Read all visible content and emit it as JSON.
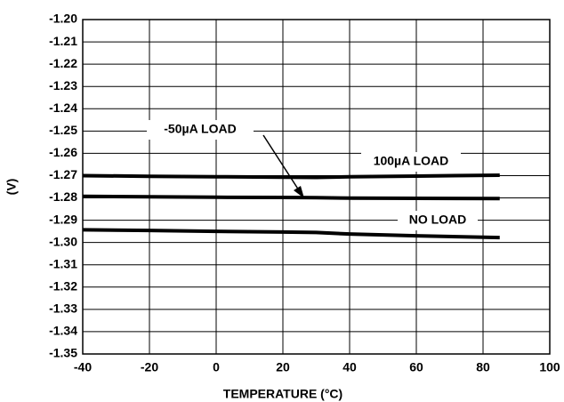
{
  "chart_data": {
    "type": "line",
    "xlabel": "TEMPERATURE (°C)",
    "ylabel": "(V)",
    "x": [
      -40,
      -20,
      0,
      20,
      30,
      40,
      60,
      85
    ],
    "series": [
      {
        "name": "100µA LOAD",
        "color": "#000000",
        "values": [
          -1.27,
          -1.2703,
          -1.2705,
          -1.2707,
          -1.2708,
          -1.2705,
          -1.2702,
          -1.2698
        ]
      },
      {
        "name": "-50µA LOAD",
        "color": "#000000",
        "values": [
          -1.2793,
          -1.2795,
          -1.2797,
          -1.2798,
          -1.2799,
          -1.2801,
          -1.2802,
          -1.2803
        ]
      },
      {
        "name": "NO LOAD",
        "color": "#000000",
        "values": [
          -1.2943,
          -1.2946,
          -1.295,
          -1.2953,
          -1.2955,
          -1.2962,
          -1.297,
          -1.2978
        ]
      }
    ],
    "xlim": [
      -40,
      100
    ],
    "xticks": [
      -40,
      -20,
      0,
      20,
      40,
      60,
      80,
      100
    ],
    "ylim": [
      -1.35,
      -1.2
    ],
    "yticks": [
      {
        "value": -1.2,
        "label": "-1.20"
      },
      -1.21,
      -1.22,
      -1.23,
      -1.24,
      -1.25,
      -1.26,
      -1.27,
      -1.28,
      -1.29,
      {
        "value": -1.3,
        "label": "-1.30"
      },
      -1.31,
      -1.32,
      -1.33,
      -1.34,
      -1.35
    ],
    "grid": true
  }
}
